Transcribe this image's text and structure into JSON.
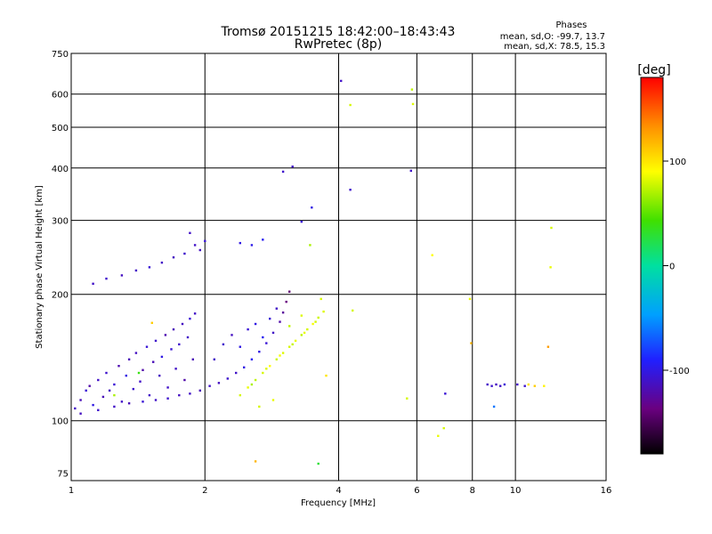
{
  "chart_data": {
    "type": "scatter",
    "title": "Tromsø 20151215 18:42:00–18:43:43",
    "subtitle": "RwPretec (8p)",
    "stats": {
      "header": "Phases",
      "line_o": "mean, sd,O: -99.7, 13.7",
      "line_x": "mean, sd,X:  78.5, 15.3"
    },
    "xlabel": "Frequency [MHz]",
    "ylabel": "Stationary phase Virtual Height [km]",
    "x_scale": "log",
    "y_scale": "log",
    "xlim": [
      1,
      16
    ],
    "ylim": [
      72,
      750
    ],
    "x_ticks": [
      1,
      2,
      4,
      6,
      8,
      10,
      16
    ],
    "y_ticks": [
      75,
      100,
      200,
      300,
      400,
      500,
      600,
      750
    ],
    "x_grid": [
      2,
      4,
      6,
      8,
      10
    ],
    "y_grid": [
      100,
      200,
      300,
      400,
      500,
      600
    ],
    "grid": true,
    "colorbar": {
      "label": "[deg]",
      "range": [
        -180,
        180
      ],
      "ticks": [
        100,
        0,
        -100
      ]
    },
    "series": [
      {
        "values": [
          [
            1.02,
            107,
            -110
          ],
          [
            1.05,
            112,
            -115
          ],
          [
            1.08,
            118,
            -105
          ],
          [
            1.1,
            121,
            -120
          ],
          [
            1.12,
            109,
            -100
          ],
          [
            1.15,
            125,
            -110
          ],
          [
            1.18,
            114,
            -115
          ],
          [
            1.2,
            130,
            -108
          ],
          [
            1.22,
            118,
            -112
          ],
          [
            1.25,
            122,
            -105
          ],
          [
            1.28,
            135,
            -118
          ],
          [
            1.3,
            111,
            -110
          ],
          [
            1.33,
            128,
            -100
          ],
          [
            1.35,
            140,
            -115
          ],
          [
            1.38,
            119,
            -108
          ],
          [
            1.4,
            145,
            -112
          ],
          [
            1.43,
            124,
            -110
          ],
          [
            1.45,
            132,
            -120
          ],
          [
            1.48,
            150,
            -105
          ],
          [
            1.5,
            115,
            -110
          ],
          [
            1.53,
            138,
            -115
          ],
          [
            1.55,
            155,
            -108
          ],
          [
            1.58,
            128,
            -112
          ],
          [
            1.6,
            142,
            -100
          ],
          [
            1.63,
            160,
            -118
          ],
          [
            1.65,
            120,
            -110
          ],
          [
            1.68,
            148,
            -105
          ],
          [
            1.7,
            165,
            -115
          ],
          [
            1.72,
            133,
            -110
          ],
          [
            1.75,
            152,
            -108
          ],
          [
            1.78,
            170,
            -112
          ],
          [
            1.8,
            125,
            -120
          ],
          [
            1.83,
            158,
            -110
          ],
          [
            1.85,
            175,
            -105
          ],
          [
            1.88,
            140,
            -115
          ],
          [
            1.9,
            180,
            -110
          ],
          [
            1.05,
            104,
            -112
          ],
          [
            1.15,
            106,
            -108
          ],
          [
            1.25,
            108,
            -110
          ],
          [
            1.35,
            110,
            -115
          ],
          [
            1.45,
            111,
            -105
          ],
          [
            1.55,
            112,
            -110
          ],
          [
            1.65,
            113,
            -108
          ],
          [
            1.75,
            115,
            -112
          ],
          [
            1.85,
            116,
            -110
          ],
          [
            1.95,
            118,
            -115
          ],
          [
            2.05,
            121,
            -110
          ],
          [
            2.15,
            123,
            -112
          ],
          [
            2.25,
            126,
            -108
          ],
          [
            2.35,
            130,
            -110
          ],
          [
            2.45,
            134,
            -100
          ],
          [
            2.55,
            140,
            -95
          ],
          [
            2.65,
            146,
            -100
          ],
          [
            2.75,
            153,
            -105
          ],
          [
            2.85,
            162,
            -110
          ],
          [
            2.95,
            172,
            -120
          ],
          [
            3.0,
            181,
            -125
          ],
          [
            3.05,
            192,
            -135
          ],
          [
            3.1,
            203,
            -140
          ],
          [
            2.1,
            140,
            -110
          ],
          [
            2.2,
            152,
            -108
          ],
          [
            2.3,
            160,
            -112
          ],
          [
            2.4,
            150,
            -100
          ],
          [
            2.5,
            165,
            -105
          ],
          [
            2.6,
            170,
            -100
          ],
          [
            2.7,
            158,
            -95
          ],
          [
            2.8,
            175,
            -105
          ],
          [
            2.9,
            185,
            -110
          ],
          [
            1.12,
            212,
            -110
          ],
          [
            1.2,
            218,
            -108
          ],
          [
            1.3,
            222,
            -112
          ],
          [
            1.4,
            228,
            -110
          ],
          [
            1.5,
            232,
            -105
          ],
          [
            1.6,
            238,
            -110
          ],
          [
            1.7,
            245,
            -112
          ],
          [
            1.8,
            250,
            -108
          ],
          [
            1.9,
            262,
            -110
          ],
          [
            2.0,
            268,
            -105
          ],
          [
            1.85,
            280,
            -110
          ],
          [
            1.95,
            255,
            -112
          ],
          [
            2.4,
            265,
            -100
          ],
          [
            2.55,
            262,
            -98
          ],
          [
            2.7,
            270,
            -95
          ],
          [
            3.15,
            403,
            -110
          ],
          [
            3.0,
            392,
            -108
          ],
          [
            3.48,
            322,
            -100
          ],
          [
            3.3,
            298,
            -105
          ],
          [
            4.05,
            645,
            -110
          ],
          [
            4.25,
            355,
            -108
          ],
          [
            5.82,
            394,
            -110
          ],
          [
            6.95,
            116,
            -105
          ],
          [
            8.65,
            122,
            -110
          ],
          [
            8.85,
            121,
            -108
          ],
          [
            9.05,
            122,
            -112
          ],
          [
            9.25,
            121,
            -110
          ],
          [
            9.45,
            122,
            -105
          ],
          [
            10.1,
            122,
            -110
          ],
          [
            10.5,
            121,
            -108
          ],
          [
            8.95,
            108,
            -60
          ]
        ]
      },
      {
        "values": [
          [
            2.4,
            115,
            80
          ],
          [
            2.5,
            120,
            85
          ],
          [
            2.6,
            125,
            75
          ],
          [
            2.7,
            130,
            80
          ],
          [
            2.8,
            135,
            90
          ],
          [
            2.9,
            140,
            78
          ],
          [
            3.0,
            145,
            82
          ],
          [
            3.1,
            150,
            80
          ],
          [
            3.2,
            155,
            85
          ],
          [
            3.3,
            160,
            75
          ],
          [
            3.4,
            165,
            80
          ],
          [
            3.5,
            170,
            88
          ],
          [
            3.6,
            176,
            78
          ],
          [
            3.7,
            182,
            82
          ],
          [
            3.65,
            195,
            80
          ],
          [
            2.55,
            122,
            70
          ],
          [
            2.75,
            133,
            82
          ],
          [
            2.95,
            143,
            88
          ],
          [
            3.15,
            152,
            76
          ],
          [
            3.35,
            162,
            84
          ],
          [
            3.55,
            172,
            80
          ],
          [
            3.1,
            168,
            75
          ],
          [
            3.3,
            178,
            82
          ],
          [
            2.65,
            108,
            80
          ],
          [
            2.85,
            112,
            85
          ],
          [
            3.45,
            262,
            70
          ],
          [
            4.25,
            565,
            80
          ],
          [
            5.85,
            615,
            75
          ],
          [
            5.88,
            568,
            82
          ],
          [
            4.3,
            183,
            80
          ],
          [
            6.5,
            248,
            90
          ],
          [
            6.7,
            92,
            85
          ],
          [
            6.9,
            96,
            80
          ],
          [
            7.9,
            195,
            85
          ],
          [
            10.7,
            122,
            100
          ],
          [
            11.05,
            121,
            110
          ],
          [
            11.6,
            121,
            95
          ],
          [
            12.05,
            288,
            80
          ],
          [
            12.0,
            232,
            85
          ],
          [
            11.85,
            150,
            130
          ],
          [
            7.95,
            153,
            120
          ],
          [
            2.6,
            80,
            120
          ],
          [
            3.6,
            79,
            30
          ],
          [
            5.7,
            113,
            80
          ],
          [
            3.75,
            128,
            100
          ],
          [
            1.52,
            171,
            110
          ],
          [
            1.42,
            130,
            40
          ],
          [
            1.25,
            115,
            70
          ]
        ]
      }
    ]
  }
}
